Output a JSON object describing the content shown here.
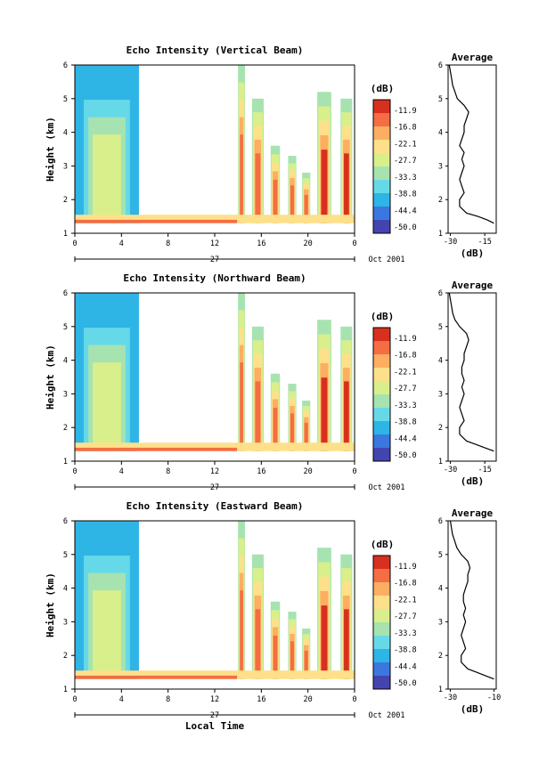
{
  "chart_data": [
    {
      "type": "heatmap",
      "title": "Echo Intensity (Vertical Beam)",
      "ylabel": "Height (km)",
      "xlabel": "",
      "x_ticks": [
        "0",
        "4",
        "8",
        "12",
        "16",
        "20",
        "0"
      ],
      "xlim": [
        0,
        24
      ],
      "y_ticks": [
        "1",
        "2",
        "3",
        "4",
        "5",
        "6"
      ],
      "ylim": [
        1,
        6
      ],
      "date_day": "27",
      "date_month_year": "Oct 2001",
      "colorbar": {
        "unit": "(dB)",
        "levels": [
          "-11.9",
          "-16.8",
          "-22.1",
          "-27.7",
          "-33.3",
          "-38.8",
          "-44.4",
          "-50.0"
        ]
      },
      "average_profile": {
        "title": "Average",
        "xlabel": "(dB)",
        "x_ticks": [
          "-30",
          "-15"
        ],
        "xlim": [
          -31,
          -10
        ],
        "y_ticks": [
          "1",
          "2",
          "3",
          "4",
          "5",
          "6"
        ],
        "height_km": [
          1.3,
          1.4,
          1.5,
          1.6,
          1.8,
          2.0,
          2.2,
          2.4,
          2.6,
          2.8,
          3.0,
          3.2,
          3.4,
          3.6,
          3.8,
          4.0,
          4.2,
          4.4,
          4.6,
          4.8,
          5.0,
          5.2,
          5.4,
          5.6,
          5.8,
          6.0
        ],
        "db": [
          -11,
          -14,
          -18,
          -23,
          -26,
          -26,
          -24,
          -25,
          -26,
          -25,
          -24,
          -25,
          -24,
          -26,
          -25,
          -24,
          -24,
          -23,
          -22,
          -24,
          -27,
          -28,
          -29,
          -29.5,
          -30,
          -30.5
        ]
      },
      "echo_episodes": [
        {
          "start_h": 0,
          "end_h": 5.5,
          "top_km": 6.0,
          "peak_db": -28
        },
        {
          "start_h": 14.0,
          "end_h": 14.6,
          "top_km": 6.0,
          "peak_db": -12
        },
        {
          "start_h": 15.2,
          "end_h": 16.2,
          "top_km": 5.0,
          "peak_db": -12
        },
        {
          "start_h": 16.8,
          "end_h": 17.6,
          "top_km": 3.6,
          "peak_db": -13
        },
        {
          "start_h": 18.3,
          "end_h": 19.0,
          "top_km": 3.3,
          "peak_db": -14
        },
        {
          "start_h": 19.5,
          "end_h": 20.2,
          "top_km": 2.8,
          "peak_db": -13
        },
        {
          "start_h": 20.8,
          "end_h": 22.0,
          "top_km": 5.2,
          "peak_db": -11.9
        },
        {
          "start_h": 22.8,
          "end_h": 23.8,
          "top_km": 5.0,
          "peak_db": -11.9
        }
      ]
    },
    {
      "type": "heatmap",
      "title": "Echo Intensity (Northward Beam)",
      "ylabel": "Height (km)",
      "xlabel": "",
      "x_ticks": [
        "0",
        "4",
        "8",
        "12",
        "16",
        "20",
        "0"
      ],
      "xlim": [
        0,
        24
      ],
      "y_ticks": [
        "1",
        "2",
        "3",
        "4",
        "5",
        "6"
      ],
      "ylim": [
        1,
        6
      ],
      "date_day": "27",
      "date_month_year": "Oct 2001",
      "colorbar": {
        "unit": "(dB)",
        "levels": [
          "-11.9",
          "-16.8",
          "-22.1",
          "-27.7",
          "-33.3",
          "-38.8",
          "-44.4",
          "-50.0"
        ]
      },
      "average_profile": {
        "title": "Average",
        "xlabel": "(dB)",
        "x_ticks": [
          "-30",
          "-15"
        ],
        "xlim": [
          -31,
          -10
        ],
        "y_ticks": [
          "1",
          "2",
          "3",
          "4",
          "5",
          "6"
        ],
        "height_km": [
          1.3,
          1.4,
          1.5,
          1.6,
          1.8,
          2.0,
          2.2,
          2.4,
          2.6,
          2.8,
          3.0,
          3.2,
          3.4,
          3.6,
          3.8,
          4.0,
          4.2,
          4.4,
          4.6,
          4.8,
          5.0,
          5.2,
          5.4,
          5.6,
          5.8,
          6.0
        ],
        "db": [
          -11,
          -15,
          -19,
          -23,
          -26,
          -26,
          -24,
          -25,
          -26,
          -25,
          -24,
          -25,
          -24,
          -25,
          -25,
          -24,
          -24,
          -23,
          -22,
          -23,
          -26,
          -28,
          -29,
          -29.5,
          -30,
          -30.5
        ]
      },
      "echo_episodes": [
        {
          "start_h": 0,
          "end_h": 5.5,
          "top_km": 6.0,
          "peak_db": -28
        },
        {
          "start_h": 14.0,
          "end_h": 14.6,
          "top_km": 6.0,
          "peak_db": -12
        },
        {
          "start_h": 15.2,
          "end_h": 16.2,
          "top_km": 5.0,
          "peak_db": -12
        },
        {
          "start_h": 16.8,
          "end_h": 17.6,
          "top_km": 3.6,
          "peak_db": -13
        },
        {
          "start_h": 18.3,
          "end_h": 19.0,
          "top_km": 3.3,
          "peak_db": -14
        },
        {
          "start_h": 19.5,
          "end_h": 20.2,
          "top_km": 2.8,
          "peak_db": -13
        },
        {
          "start_h": 20.8,
          "end_h": 22.0,
          "top_km": 5.2,
          "peak_db": -11.9
        },
        {
          "start_h": 22.8,
          "end_h": 23.8,
          "top_km": 5.0,
          "peak_db": -11.9
        }
      ]
    },
    {
      "type": "heatmap",
      "title": "Echo Intensity (Eastward Beam)",
      "ylabel": "Height (km)",
      "xlabel": "Local Time",
      "x_ticks": [
        "0",
        "4",
        "8",
        "12",
        "16",
        "20",
        "0"
      ],
      "xlim": [
        0,
        24
      ],
      "y_ticks": [
        "1",
        "2",
        "3",
        "4",
        "5",
        "6"
      ],
      "ylim": [
        1,
        6
      ],
      "date_day": "27",
      "date_month_year": "Oct 2001",
      "colorbar": {
        "unit": "(dB)",
        "levels": [
          "-11.9",
          "-16.8",
          "-22.1",
          "-27.7",
          "-33.3",
          "-38.8",
          "-44.4",
          "-50.0"
        ]
      },
      "average_profile": {
        "title": "Average",
        "xlabel": "(dB)",
        "x_ticks": [
          "-30",
          "-10"
        ],
        "xlim": [
          -31,
          -9
        ],
        "y_ticks": [
          "1",
          "2",
          "3",
          "4",
          "5",
          "6"
        ],
        "height_km": [
          1.3,
          1.4,
          1.5,
          1.6,
          1.8,
          2.0,
          2.2,
          2.4,
          2.6,
          2.8,
          3.0,
          3.2,
          3.4,
          3.6,
          3.8,
          4.0,
          4.2,
          4.4,
          4.6,
          4.8,
          5.0,
          5.2,
          5.4,
          5.6,
          5.8,
          6.0
        ],
        "db": [
          -10,
          -14,
          -18,
          -22,
          -25,
          -25,
          -23,
          -24,
          -25,
          -24,
          -23,
          -24,
          -23,
          -24,
          -24,
          -23,
          -22,
          -22,
          -21,
          -22,
          -25,
          -27,
          -28,
          -29,
          -29.5,
          -30
        ]
      },
      "echo_episodes": [
        {
          "start_h": 0,
          "end_h": 5.5,
          "top_km": 6.0,
          "peak_db": -28
        },
        {
          "start_h": 14.0,
          "end_h": 14.6,
          "top_km": 6.0,
          "peak_db": -12
        },
        {
          "start_h": 15.2,
          "end_h": 16.2,
          "top_km": 5.0,
          "peak_db": -12
        },
        {
          "start_h": 16.8,
          "end_h": 17.6,
          "top_km": 3.6,
          "peak_db": -13
        },
        {
          "start_h": 18.3,
          "end_h": 19.0,
          "top_km": 3.3,
          "peak_db": -14
        },
        {
          "start_h": 19.5,
          "end_h": 20.2,
          "top_km": 2.8,
          "peak_db": -13
        },
        {
          "start_h": 20.8,
          "end_h": 22.0,
          "top_km": 5.2,
          "peak_db": -11.9
        },
        {
          "start_h": 22.8,
          "end_h": 23.8,
          "top_km": 5.0,
          "peak_db": -11.9
        }
      ]
    }
  ],
  "colors": {
    "scale": [
      "#d7301f",
      "#f46d43",
      "#fdae61",
      "#fee08b",
      "#d9ef8b",
      "#a6e3b0",
      "#66d9e8",
      "#2fb4e6",
      "#3a78e0",
      "#4444b0"
    ]
  }
}
